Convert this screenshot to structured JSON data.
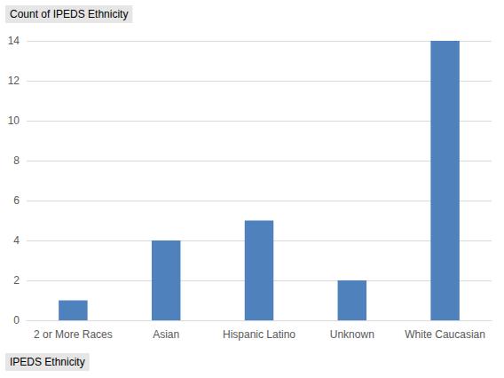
{
  "chart_data": {
    "type": "bar",
    "title": "Count of IPEDS Ethnicity",
    "xlabel": "IPEDS Ethnicity",
    "categories": [
      "2 or More Races",
      "Asian",
      "Hispanic Latino",
      "Unknown",
      "White Caucasian"
    ],
    "values": [
      1,
      4,
      5,
      2,
      14
    ],
    "color": "#4f81bd",
    "ylim": [
      0,
      14
    ],
    "yticks": [
      0,
      2,
      4,
      6,
      8,
      10,
      12,
      14
    ],
    "grid": true
  }
}
